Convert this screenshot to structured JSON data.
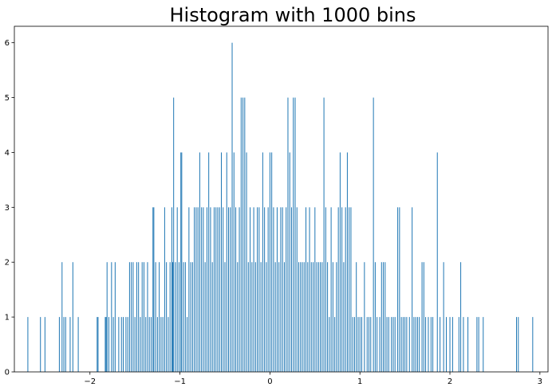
{
  "chart_data": {
    "type": "bar",
    "title": "Histogram with 1000 bins",
    "xlabel": "",
    "ylabel": "",
    "bins": 1000,
    "xlim": [
      -2.84,
      3.09
    ],
    "ylim": [
      0,
      6.3
    ],
    "x_ticks": [
      -2,
      -1,
      0,
      1,
      2,
      3
    ],
    "x_tick_labels": [
      "−2",
      "−1",
      "0",
      "1",
      "2",
      "3"
    ],
    "y_ticks": [
      0,
      1,
      2,
      3,
      4,
      5,
      6
    ],
    "y_tick_labels": [
      "0",
      "1",
      "2",
      "3",
      "4",
      "5",
      "6"
    ],
    "grid": false,
    "legend": "none",
    "bar_color": "#1f77b4",
    "series": [
      {
        "values_note": "",
        "bins": [
          {
            "x": -2.69,
            "count": 1
          },
          {
            "x": -2.55,
            "count": 1
          },
          {
            "x": -2.5,
            "count": 1
          },
          {
            "x": -2.34,
            "count": 1
          },
          {
            "x": -2.31,
            "count": 2
          },
          {
            "x": -2.29,
            "count": 1
          },
          {
            "x": -2.27,
            "count": 1
          },
          {
            "x": -2.22,
            "count": 1
          },
          {
            "x": -2.19,
            "count": 2
          },
          {
            "x": -2.13,
            "count": 1
          },
          {
            "x": -1.92,
            "count": 1
          },
          {
            "x": -1.91,
            "count": 1
          },
          {
            "x": -1.83,
            "count": 1
          },
          {
            "x": -1.82,
            "count": 1
          },
          {
            "x": -1.81,
            "count": 2
          },
          {
            "x": -1.79,
            "count": 1
          },
          {
            "x": -1.76,
            "count": 2
          },
          {
            "x": -1.74,
            "count": 1
          },
          {
            "x": -1.72,
            "count": 2
          },
          {
            "x": -1.68,
            "count": 1
          },
          {
            "x": -1.65,
            "count": 1
          },
          {
            "x": -1.63,
            "count": 1
          },
          {
            "x": -1.6,
            "count": 1
          },
          {
            "x": -1.58,
            "count": 1
          },
          {
            "x": -1.56,
            "count": 2
          },
          {
            "x": -1.54,
            "count": 2
          },
          {
            "x": -1.52,
            "count": 2
          },
          {
            "x": -1.5,
            "count": 1
          },
          {
            "x": -1.48,
            "count": 2
          },
          {
            "x": -1.46,
            "count": 2
          },
          {
            "x": -1.44,
            "count": 1
          },
          {
            "x": -1.42,
            "count": 2
          },
          {
            "x": -1.4,
            "count": 2
          },
          {
            "x": -1.38,
            "count": 1
          },
          {
            "x": -1.36,
            "count": 2
          },
          {
            "x": -1.34,
            "count": 1
          },
          {
            "x": -1.32,
            "count": 1
          },
          {
            "x": -1.3,
            "count": 3
          },
          {
            "x": -1.29,
            "count": 3
          },
          {
            "x": -1.27,
            "count": 2
          },
          {
            "x": -1.25,
            "count": 1
          },
          {
            "x": -1.23,
            "count": 2
          },
          {
            "x": -1.21,
            "count": 1
          },
          {
            "x": -1.19,
            "count": 1
          },
          {
            "x": -1.17,
            "count": 3
          },
          {
            "x": -1.15,
            "count": 2
          },
          {
            "x": -1.13,
            "count": 1
          },
          {
            "x": -1.11,
            "count": 2
          },
          {
            "x": -1.09,
            "count": 3
          },
          {
            "x": -1.08,
            "count": 2
          },
          {
            "x": -1.07,
            "count": 5
          },
          {
            "x": -1.05,
            "count": 2
          },
          {
            "x": -1.03,
            "count": 3
          },
          {
            "x": -1.01,
            "count": 2
          },
          {
            "x": -0.99,
            "count": 4
          },
          {
            "x": -0.98,
            "count": 4
          },
          {
            "x": -0.96,
            "count": 2
          },
          {
            "x": -0.94,
            "count": 2
          },
          {
            "x": -0.92,
            "count": 1
          },
          {
            "x": -0.9,
            "count": 3
          },
          {
            "x": -0.88,
            "count": 2
          },
          {
            "x": -0.86,
            "count": 2
          },
          {
            "x": -0.84,
            "count": 3
          },
          {
            "x": -0.82,
            "count": 3
          },
          {
            "x": -0.8,
            "count": 3
          },
          {
            "x": -0.78,
            "count": 4
          },
          {
            "x": -0.76,
            "count": 3
          },
          {
            "x": -0.74,
            "count": 3
          },
          {
            "x": -0.72,
            "count": 2
          },
          {
            "x": -0.7,
            "count": 3
          },
          {
            "x": -0.68,
            "count": 4
          },
          {
            "x": -0.66,
            "count": 3
          },
          {
            "x": -0.64,
            "count": 2
          },
          {
            "x": -0.62,
            "count": 3
          },
          {
            "x": -0.6,
            "count": 3
          },
          {
            "x": -0.58,
            "count": 3
          },
          {
            "x": -0.56,
            "count": 3
          },
          {
            "x": -0.54,
            "count": 4
          },
          {
            "x": -0.52,
            "count": 3
          },
          {
            "x": -0.5,
            "count": 2
          },
          {
            "x": -0.48,
            "count": 4
          },
          {
            "x": -0.46,
            "count": 3
          },
          {
            "x": -0.44,
            "count": 3
          },
          {
            "x": -0.42,
            "count": 6
          },
          {
            "x": -0.4,
            "count": 4
          },
          {
            "x": -0.38,
            "count": 3
          },
          {
            "x": -0.36,
            "count": 2
          },
          {
            "x": -0.34,
            "count": 3
          },
          {
            "x": -0.32,
            "count": 5
          },
          {
            "x": -0.3,
            "count": 5
          },
          {
            "x": -0.28,
            "count": 5
          },
          {
            "x": -0.26,
            "count": 4
          },
          {
            "x": -0.24,
            "count": 2
          },
          {
            "x": -0.22,
            "count": 3
          },
          {
            "x": -0.2,
            "count": 2
          },
          {
            "x": -0.18,
            "count": 3
          },
          {
            "x": -0.16,
            "count": 2
          },
          {
            "x": -0.14,
            "count": 3
          },
          {
            "x": -0.12,
            "count": 3
          },
          {
            "x": -0.1,
            "count": 2
          },
          {
            "x": -0.08,
            "count": 4
          },
          {
            "x": -0.06,
            "count": 3
          },
          {
            "x": -0.04,
            "count": 2
          },
          {
            "x": -0.02,
            "count": 3
          },
          {
            "x": 0.0,
            "count": 4
          },
          {
            "x": 0.02,
            "count": 4
          },
          {
            "x": 0.04,
            "count": 3
          },
          {
            "x": 0.06,
            "count": 2
          },
          {
            "x": 0.08,
            "count": 3
          },
          {
            "x": 0.1,
            "count": 2
          },
          {
            "x": 0.12,
            "count": 3
          },
          {
            "x": 0.14,
            "count": 3
          },
          {
            "x": 0.16,
            "count": 2
          },
          {
            "x": 0.18,
            "count": 3
          },
          {
            "x": 0.2,
            "count": 5
          },
          {
            "x": 0.22,
            "count": 4
          },
          {
            "x": 0.24,
            "count": 3
          },
          {
            "x": 0.26,
            "count": 5
          },
          {
            "x": 0.28,
            "count": 5
          },
          {
            "x": 0.3,
            "count": 3
          },
          {
            "x": 0.32,
            "count": 2
          },
          {
            "x": 0.34,
            "count": 2
          },
          {
            "x": 0.36,
            "count": 2
          },
          {
            "x": 0.38,
            "count": 2
          },
          {
            "x": 0.4,
            "count": 3
          },
          {
            "x": 0.42,
            "count": 2
          },
          {
            "x": 0.44,
            "count": 3
          },
          {
            "x": 0.46,
            "count": 2
          },
          {
            "x": 0.48,
            "count": 2
          },
          {
            "x": 0.5,
            "count": 3
          },
          {
            "x": 0.52,
            "count": 2
          },
          {
            "x": 0.54,
            "count": 2
          },
          {
            "x": 0.56,
            "count": 2
          },
          {
            "x": 0.58,
            "count": 2
          },
          {
            "x": 0.6,
            "count": 5
          },
          {
            "x": 0.62,
            "count": 3
          },
          {
            "x": 0.64,
            "count": 2
          },
          {
            "x": 0.66,
            "count": 1
          },
          {
            "x": 0.68,
            "count": 3
          },
          {
            "x": 0.7,
            "count": 2
          },
          {
            "x": 0.72,
            "count": 1
          },
          {
            "x": 0.74,
            "count": 2
          },
          {
            "x": 0.76,
            "count": 3
          },
          {
            "x": 0.78,
            "count": 4
          },
          {
            "x": 0.8,
            "count": 3
          },
          {
            "x": 0.82,
            "count": 2
          },
          {
            "x": 0.84,
            "count": 3
          },
          {
            "x": 0.86,
            "count": 4
          },
          {
            "x": 0.88,
            "count": 3
          },
          {
            "x": 0.9,
            "count": 3
          },
          {
            "x": 0.92,
            "count": 1
          },
          {
            "x": 0.94,
            "count": 1
          },
          {
            "x": 0.96,
            "count": 2
          },
          {
            "x": 0.98,
            "count": 1
          },
          {
            "x": 1.0,
            "count": 1
          },
          {
            "x": 1.02,
            "count": 1
          },
          {
            "x": 1.05,
            "count": 2
          },
          {
            "x": 1.08,
            "count": 1
          },
          {
            "x": 1.1,
            "count": 1
          },
          {
            "x": 1.12,
            "count": 1
          },
          {
            "x": 1.15,
            "count": 5
          },
          {
            "x": 1.17,
            "count": 2
          },
          {
            "x": 1.19,
            "count": 1
          },
          {
            "x": 1.22,
            "count": 1
          },
          {
            "x": 1.24,
            "count": 2
          },
          {
            "x": 1.26,
            "count": 2
          },
          {
            "x": 1.28,
            "count": 2
          },
          {
            "x": 1.3,
            "count": 1
          },
          {
            "x": 1.32,
            "count": 1
          },
          {
            "x": 1.35,
            "count": 1
          },
          {
            "x": 1.37,
            "count": 1
          },
          {
            "x": 1.39,
            "count": 1
          },
          {
            "x": 1.42,
            "count": 3
          },
          {
            "x": 1.44,
            "count": 3
          },
          {
            "x": 1.46,
            "count": 1
          },
          {
            "x": 1.48,
            "count": 1
          },
          {
            "x": 1.5,
            "count": 1
          },
          {
            "x": 1.52,
            "count": 1
          },
          {
            "x": 1.55,
            "count": 1
          },
          {
            "x": 1.58,
            "count": 3
          },
          {
            "x": 1.6,
            "count": 1
          },
          {
            "x": 1.62,
            "count": 1
          },
          {
            "x": 1.64,
            "count": 1
          },
          {
            "x": 1.66,
            "count": 1
          },
          {
            "x": 1.69,
            "count": 2
          },
          {
            "x": 1.71,
            "count": 2
          },
          {
            "x": 1.73,
            "count": 1
          },
          {
            "x": 1.76,
            "count": 1
          },
          {
            "x": 1.79,
            "count": 1
          },
          {
            "x": 1.81,
            "count": 1
          },
          {
            "x": 1.86,
            "count": 4
          },
          {
            "x": 1.89,
            "count": 1
          },
          {
            "x": 1.93,
            "count": 2
          },
          {
            "x": 1.96,
            "count": 1
          },
          {
            "x": 2.0,
            "count": 1
          },
          {
            "x": 2.03,
            "count": 1
          },
          {
            "x": 2.1,
            "count": 1
          },
          {
            "x": 2.12,
            "count": 2
          },
          {
            "x": 2.15,
            "count": 1
          },
          {
            "x": 2.2,
            "count": 1
          },
          {
            "x": 2.3,
            "count": 1
          },
          {
            "x": 2.32,
            "count": 1
          },
          {
            "x": 2.37,
            "count": 1
          },
          {
            "x": 2.74,
            "count": 1
          },
          {
            "x": 2.76,
            "count": 1
          },
          {
            "x": 2.92,
            "count": 1
          }
        ]
      }
    ]
  }
}
